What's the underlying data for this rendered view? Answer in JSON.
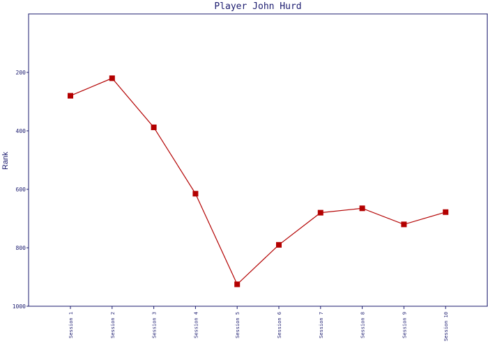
{
  "chart_data": {
    "type": "line",
    "title": "Player John Hurd",
    "xlabel": "",
    "ylabel": "Rank",
    "categories": [
      "Session 1",
      "Session 2",
      "Session 3",
      "Session 4",
      "Session 5",
      "Session 6",
      "Session 7",
      "Session 8",
      "Session 9",
      "Session 10"
    ],
    "series": [
      {
        "values": [
          280,
          220,
          388,
          615,
          925,
          790,
          680,
          665,
          720,
          678
        ],
        "color": "#b30000"
      }
    ],
    "ylim": [
      0,
      1000
    ],
    "y_inverted": true,
    "yticks": [
      200,
      400,
      600,
      800,
      1000
    ],
    "ytick_labels": [
      "200",
      "400",
      "600",
      "800",
      "1000"
    ],
    "grid": false,
    "legend": "none",
    "colors": {
      "axis": "#1a1a6e",
      "line": "#b30000",
      "marker": "#b30000"
    }
  }
}
